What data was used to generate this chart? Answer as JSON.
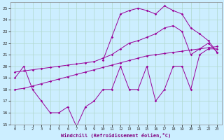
{
  "xlabel": "Windchill (Refroidissement éolien,°C)",
  "bg_color": "#cceeff",
  "grid_color": "#aaddcc",
  "line_color": "#990099",
  "xlim": [
    -0.5,
    23.5
  ],
  "ylim": [
    15,
    25.5
  ],
  "yticks": [
    15,
    16,
    17,
    18,
    19,
    20,
    21,
    22,
    23,
    24,
    25
  ],
  "xticks": [
    0,
    1,
    2,
    3,
    4,
    5,
    6,
    7,
    8,
    9,
    10,
    11,
    12,
    13,
    14,
    15,
    16,
    17,
    18,
    19,
    20,
    21,
    22,
    23
  ],
  "line1_x": [
    0,
    1,
    2,
    3,
    4,
    5,
    6,
    7,
    8,
    9,
    10,
    11,
    12,
    13,
    14,
    15,
    16,
    17,
    18,
    19,
    20,
    21,
    22,
    23
  ],
  "line1_y": [
    19,
    20,
    18,
    17,
    16,
    16,
    16.5,
    14.8,
    16.5,
    17,
    18,
    18,
    20,
    18,
    18,
    20,
    17,
    18,
    20,
    20,
    18,
    21,
    21.5,
    21.5
  ],
  "line2_x": [
    0,
    1,
    2,
    3,
    4,
    5,
    6,
    7,
    8,
    9,
    10,
    11,
    12,
    13,
    14,
    15,
    16,
    17,
    18,
    19,
    20,
    21,
    22,
    23
  ],
  "line2_y": [
    19.5,
    19.6,
    19.7,
    19.8,
    19.9,
    20.0,
    20.1,
    20.2,
    20.3,
    20.4,
    20.7,
    21.0,
    21.5,
    22.0,
    22.2,
    22.5,
    22.8,
    23.3,
    23.5,
    23.0,
    21.0,
    21.5,
    22.0,
    21.2
  ],
  "line3_x": [
    0,
    1,
    2,
    3,
    4,
    5,
    6,
    7,
    8,
    9,
    10,
    11,
    12,
    13,
    14,
    15,
    16,
    17,
    18,
    19,
    20,
    21,
    22,
    23
  ],
  "line3_y": [
    18.0,
    18.1,
    18.3,
    18.5,
    18.7,
    18.9,
    19.1,
    19.3,
    19.5,
    19.7,
    19.9,
    20.1,
    20.3,
    20.5,
    20.7,
    20.9,
    21.0,
    21.1,
    21.2,
    21.3,
    21.4,
    21.5,
    21.6,
    21.7
  ],
  "line4_x": [
    10,
    11,
    12,
    13,
    14,
    15,
    16,
    17,
    18,
    19,
    20,
    21,
    22,
    23
  ],
  "line4_y": [
    20.5,
    22.5,
    24.5,
    24.8,
    25.0,
    24.8,
    24.5,
    25.2,
    24.8,
    24.5,
    23.3,
    22.8,
    22.2,
    21.2
  ]
}
